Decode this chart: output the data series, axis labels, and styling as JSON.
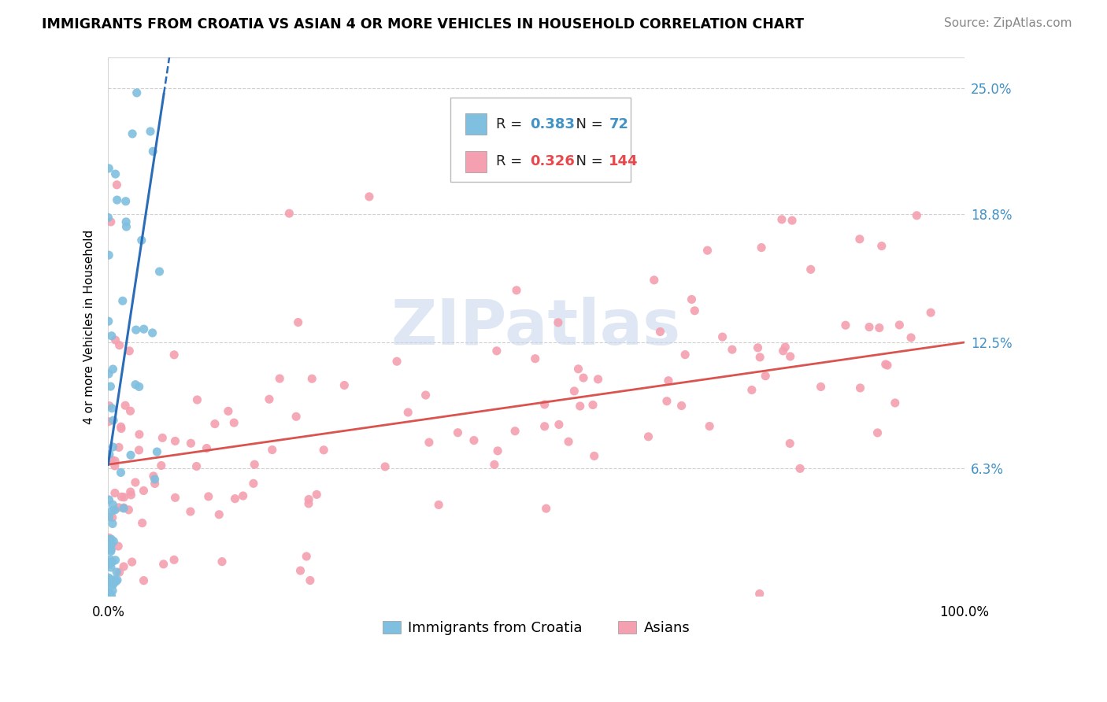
{
  "title": "IMMIGRANTS FROM CROATIA VS ASIAN 4 OR MORE VEHICLES IN HOUSEHOLD CORRELATION CHART",
  "source": "Source: ZipAtlas.com",
  "ylabel": "4 or more Vehicles in Household",
  "ytick_labels": [
    "6.3%",
    "12.5%",
    "18.8%",
    "25.0%"
  ],
  "ytick_values": [
    0.063,
    0.125,
    0.188,
    0.25
  ],
  "xlim": [
    0.0,
    1.0
  ],
  "ylim": [
    0.0,
    0.265
  ],
  "croatia_scatter_color": "#7fbfdf",
  "asia_scatter_color": "#f4a0b0",
  "croatia_line_color": "#2b6cb8",
  "asia_line_color": "#d9534f",
  "grid_color": "#d0d0d0",
  "watermark_text": "ZIPatlas",
  "legend_R1": "0.383",
  "legend_N1": "72",
  "legend_R2": "0.326",
  "legend_N2": "144",
  "legend_label1": "Immigrants from Croatia",
  "legend_label2": "Asians",
  "legend_num_color1": "#4292c6",
  "legend_num_color2": "#e8474c",
  "right_axis_color": "#4292c6"
}
